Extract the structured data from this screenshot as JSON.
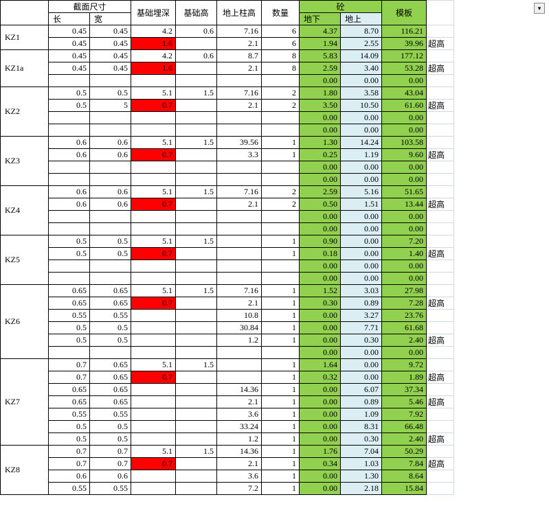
{
  "headers": {
    "section": "截面尺寸",
    "length": "长",
    "width": "宽",
    "depth": "基础埋深",
    "height": "基础高",
    "colheight": "地上柱高",
    "qty": "数量",
    "concrete": "砼",
    "under": "地下",
    "above": "地上",
    "formwork": "模板"
  },
  "overtall": "超高",
  "groups": [
    {
      "label": "KZ1",
      "rows": [
        {
          "l": "0.45",
          "w": "0.45",
          "d": "4.2",
          "h": "0.6",
          "ch": "7.16",
          "q": "6",
          "u": "4.37",
          "a": "8.70",
          "f": "116.21",
          "red": false,
          "over": false
        },
        {
          "l": "0.45",
          "w": "0.45",
          "d": "1.6",
          "h": "",
          "ch": "2.1",
          "q": "6",
          "u": "1.94",
          "a": "2.55",
          "f": "39.96",
          "red": true,
          "over": true
        }
      ]
    },
    {
      "label": "KZ1a",
      "rows": [
        {
          "l": "0.45",
          "w": "0.45",
          "d": "4.2",
          "h": "0.6",
          "ch": "8.7",
          "q": "8",
          "u": "5.83",
          "a": "14.09",
          "f": "177.12",
          "red": false,
          "over": false
        },
        {
          "l": "0.45",
          "w": "0.45",
          "d": "1.6",
          "h": "",
          "ch": "2.1",
          "q": "8",
          "u": "2.59",
          "a": "3.40",
          "f": "53.28",
          "red": true,
          "over": true
        },
        {
          "l": "",
          "w": "",
          "d": "",
          "h": "",
          "ch": "",
          "q": "",
          "u": "0.00",
          "a": "0.00",
          "f": "0.00",
          "red": false,
          "over": false
        }
      ]
    },
    {
      "label": "KZ2",
      "rows": [
        {
          "l": "0.5",
          "w": "0.5",
          "d": "5.1",
          "h": "1.5",
          "ch": "7.16",
          "q": "2",
          "u": "1.80",
          "a": "3.58",
          "f": "43.04",
          "red": false,
          "over": false
        },
        {
          "l": "0.5",
          "w": "5",
          "d": "0.7",
          "h": "",
          "ch": "2.1",
          "q": "2",
          "u": "3.50",
          "a": "10.50",
          "f": "61.60",
          "red": true,
          "over": true
        },
        {
          "l": "",
          "w": "",
          "d": "",
          "h": "",
          "ch": "",
          "q": "",
          "u": "0.00",
          "a": "0.00",
          "f": "0.00",
          "red": false,
          "over": false
        },
        {
          "l": "",
          "w": "",
          "d": "",
          "h": "",
          "ch": "",
          "q": "",
          "u": "0.00",
          "a": "0.00",
          "f": "0.00",
          "red": false,
          "over": false
        }
      ]
    },
    {
      "label": "KZ3",
      "rows": [
        {
          "l": "0.6",
          "w": "0.6",
          "d": "5.1",
          "h": "1.5",
          "ch": "39.56",
          "q": "1",
          "u": "1.30",
          "a": "14.24",
          "f": "103.58",
          "red": false,
          "over": false
        },
        {
          "l": "0.6",
          "w": "0.6",
          "d": "0.7",
          "h": "",
          "ch": "3.3",
          "q": "1",
          "u": "0.25",
          "a": "1.19",
          "f": "9.60",
          "red": true,
          "over": true
        },
        {
          "l": "",
          "w": "",
          "d": "",
          "h": "",
          "ch": "",
          "q": "",
          "u": "0.00",
          "a": "0.00",
          "f": "0.00",
          "red": false,
          "over": false
        },
        {
          "l": "",
          "w": "",
          "d": "",
          "h": "",
          "ch": "",
          "q": "",
          "u": "0.00",
          "a": "0.00",
          "f": "0.00",
          "red": false,
          "over": false
        }
      ]
    },
    {
      "label": "KZ4",
      "rows": [
        {
          "l": "0.6",
          "w": "0.6",
          "d": "5.1",
          "h": "1.5",
          "ch": "7.16",
          "q": "2",
          "u": "2.59",
          "a": "5.16",
          "f": "51.65",
          "red": false,
          "over": false
        },
        {
          "l": "0.6",
          "w": "0.6",
          "d": "0.7",
          "h": "",
          "ch": "2.1",
          "q": "2",
          "u": "0.50",
          "a": "1.51",
          "f": "13.44",
          "red": true,
          "over": true
        },
        {
          "l": "",
          "w": "",
          "d": "",
          "h": "",
          "ch": "",
          "q": "",
          "u": "0.00",
          "a": "0.00",
          "f": "0.00",
          "red": false,
          "over": false
        },
        {
          "l": "",
          "w": "",
          "d": "",
          "h": "",
          "ch": "",
          "q": "",
          "u": "0.00",
          "a": "0.00",
          "f": "0.00",
          "red": false,
          "over": false
        }
      ]
    },
    {
      "label": "KZ5",
      "rows": [
        {
          "l": "0.5",
          "w": "0.5",
          "d": "5.1",
          "h": "1.5",
          "ch": "",
          "q": "1",
          "u": "0.90",
          "a": "0.00",
          "f": "7.20",
          "red": false,
          "over": false
        },
        {
          "l": "0.5",
          "w": "0.5",
          "d": "0.7",
          "h": "",
          "ch": "",
          "q": "1",
          "u": "0.18",
          "a": "0.00",
          "f": "1.40",
          "red": true,
          "over": true
        },
        {
          "l": "",
          "w": "",
          "d": "",
          "h": "",
          "ch": "",
          "q": "",
          "u": "0.00",
          "a": "0.00",
          "f": "0.00",
          "red": false,
          "over": false
        },
        {
          "l": "",
          "w": "",
          "d": "",
          "h": "",
          "ch": "",
          "q": "",
          "u": "0.00",
          "a": "0.00",
          "f": "0.00",
          "red": false,
          "over": false
        }
      ]
    },
    {
      "label": "KZ6",
      "rows": [
        {
          "l": "0.65",
          "w": "0.65",
          "d": "5.1",
          "h": "1.5",
          "ch": "7.16",
          "q": "1",
          "u": "1.52",
          "a": "3.03",
          "f": "27.98",
          "red": false,
          "over": false
        },
        {
          "l": "0.65",
          "w": "0.65",
          "d": "0.7",
          "h": "",
          "ch": "2.1",
          "q": "1",
          "u": "0.30",
          "a": "0.89",
          "f": "7.28",
          "red": true,
          "over": true
        },
        {
          "l": "0.55",
          "w": "0.55",
          "d": "",
          "h": "",
          "ch": "10.8",
          "q": "1",
          "u": "0.00",
          "a": "3.27",
          "f": "23.76",
          "red": false,
          "over": false
        },
        {
          "l": "0.5",
          "w": "0.5",
          "d": "",
          "h": "",
          "ch": "30.84",
          "q": "1",
          "u": "0.00",
          "a": "7.71",
          "f": "61.68",
          "red": false,
          "over": false
        },
        {
          "l": "0.5",
          "w": "0.5",
          "d": "",
          "h": "",
          "ch": "1.2",
          "q": "1",
          "u": "0.00",
          "a": "0.30",
          "f": "2.40",
          "red": false,
          "over": true
        },
        {
          "l": "",
          "w": "",
          "d": "",
          "h": "",
          "ch": "",
          "q": "",
          "u": "0.00",
          "a": "0.00",
          "f": "0.00",
          "red": false,
          "over": false
        }
      ]
    },
    {
      "label": "KZ7",
      "rows": [
        {
          "l": "0.7",
          "w": "0.65",
          "d": "5.1",
          "h": "1.5",
          "ch": "",
          "q": "1",
          "u": "1.64",
          "a": "0.00",
          "f": "9.72",
          "red": false,
          "over": false
        },
        {
          "l": "0.7",
          "w": "0.65",
          "d": "0.7",
          "h": "",
          "ch": "",
          "q": "1",
          "u": "0.32",
          "a": "0.00",
          "f": "1.89",
          "red": true,
          "over": true
        },
        {
          "l": "0.65",
          "w": "0.65",
          "d": "",
          "h": "",
          "ch": "14.36",
          "q": "1",
          "u": "0.00",
          "a": "6.07",
          "f": "37.34",
          "red": false,
          "over": false
        },
        {
          "l": "0.65",
          "w": "0.65",
          "d": "",
          "h": "",
          "ch": "2.1",
          "q": "1",
          "u": "0.00",
          "a": "0.89",
          "f": "5.46",
          "red": false,
          "over": true
        },
        {
          "l": "0.55",
          "w": "0.55",
          "d": "",
          "h": "",
          "ch": "3.6",
          "q": "1",
          "u": "0.00",
          "a": "1.09",
          "f": "7.92",
          "red": false,
          "over": false
        },
        {
          "l": "0.5",
          "w": "0.5",
          "d": "",
          "h": "",
          "ch": "33.24",
          "q": "1",
          "u": "0.00",
          "a": "8.31",
          "f": "66.48",
          "red": false,
          "over": false
        },
        {
          "l": "0.5",
          "w": "0.5",
          "d": "",
          "h": "",
          "ch": "1.2",
          "q": "1",
          "u": "0.00",
          "a": "0.30",
          "f": "2.40",
          "red": false,
          "over": true
        }
      ]
    },
    {
      "label": "KZ8",
      "rows": [
        {
          "l": "0.7",
          "w": "0.7",
          "d": "5.1",
          "h": "1.5",
          "ch": "14.36",
          "q": "1",
          "u": "1.76",
          "a": "7.04",
          "f": "50.29",
          "red": false,
          "over": false
        },
        {
          "l": "0.7",
          "w": "0.7",
          "d": "0.7",
          "h": "",
          "ch": "2.1",
          "q": "1",
          "u": "0.34",
          "a": "1.03",
          "f": "7.84",
          "red": true,
          "over": true
        },
        {
          "l": "0.6",
          "w": "0.6",
          "d": "",
          "h": "",
          "ch": "3.6",
          "q": "1",
          "u": "0.00",
          "a": "1.30",
          "f": "8.64",
          "red": false,
          "over": false
        },
        {
          "l": "0.55",
          "w": "0.55",
          "d": "",
          "h": "",
          "ch": "7.2",
          "q": "1",
          "u": "0.00",
          "a": "2.18",
          "f": "15.84",
          "red": false,
          "over": false
        }
      ]
    }
  ],
  "colwidths": {
    "label": 70,
    "l": 60,
    "w": 60,
    "d": 65,
    "h": 60,
    "ch": 65,
    "q": 55,
    "u": 60,
    "a": 60,
    "f": 65,
    "side": 40
  }
}
